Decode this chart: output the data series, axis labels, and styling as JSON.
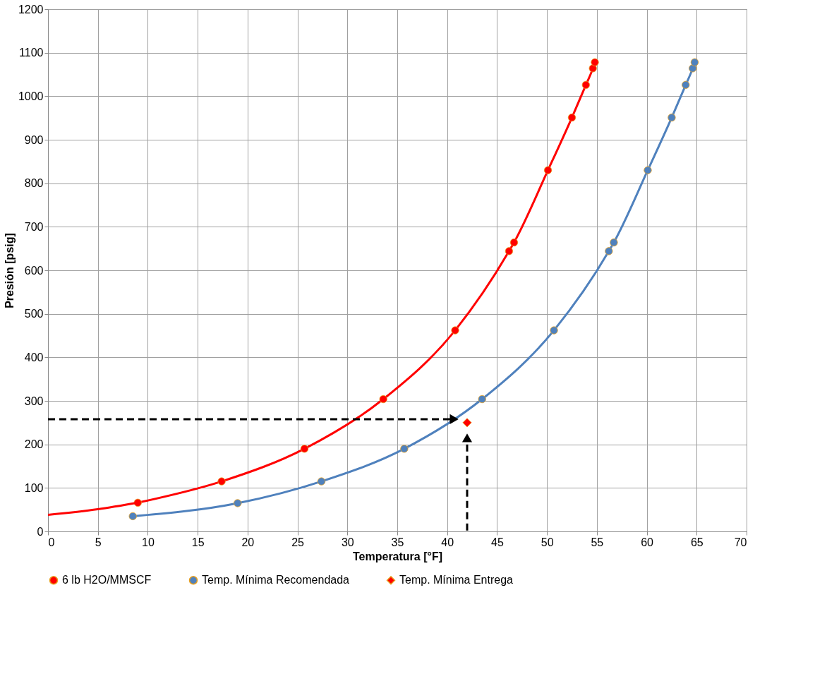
{
  "chart_data": {
    "type": "line",
    "xlabel": "Temperatura [°F]",
    "ylabel": "Presión [psig]",
    "xlim": [
      0,
      70
    ],
    "xticks": [
      0,
      5,
      10,
      15,
      20,
      25,
      30,
      35,
      40,
      45,
      50,
      55,
      60,
      65,
      70
    ],
    "ylim": [
      0,
      1200
    ],
    "yticks": [
      0,
      100,
      200,
      300,
      400,
      500,
      600,
      700,
      800,
      900,
      1000,
      1100,
      1200
    ],
    "grid": true,
    "legend": "bottom",
    "series": [
      {
        "name": "6 lb H2O/MMSCF",
        "marker": "circle",
        "color": "#ff0000",
        "x": [
          9,
          17.4,
          25.7,
          33.6,
          40.8,
          46.2,
          46.7,
          50.1,
          52.5,
          53.9,
          54.6,
          54.8
        ],
        "values": [
          66,
          115,
          190,
          304,
          462,
          644,
          664,
          830,
          951,
          1026,
          1064,
          1078
        ]
      },
      {
        "marker": "none",
        "color": "#ff0000",
        "x": [
          0,
          5,
          9
        ],
        "values": [
          38,
          51,
          66
        ]
      },
      {
        "name": "Temp. Mínima Recomendada",
        "marker": "circle",
        "color": "#4f81bd",
        "x": [
          8.5,
          19,
          27.4,
          35.7,
          43.5,
          50.7,
          56.2,
          56.7,
          60.1,
          62.5,
          63.9,
          64.6,
          64.8
        ],
        "values": [
          35,
          65,
          115,
          190,
          304,
          462,
          644,
          664,
          830,
          951,
          1026,
          1064,
          1078
        ]
      },
      {
        "name": "Temp. Mínima Entrega",
        "type": "scatter",
        "marker": "diamond",
        "color": "#ff0000",
        "x": [
          42
        ],
        "values": [
          250
        ]
      }
    ]
  }
}
